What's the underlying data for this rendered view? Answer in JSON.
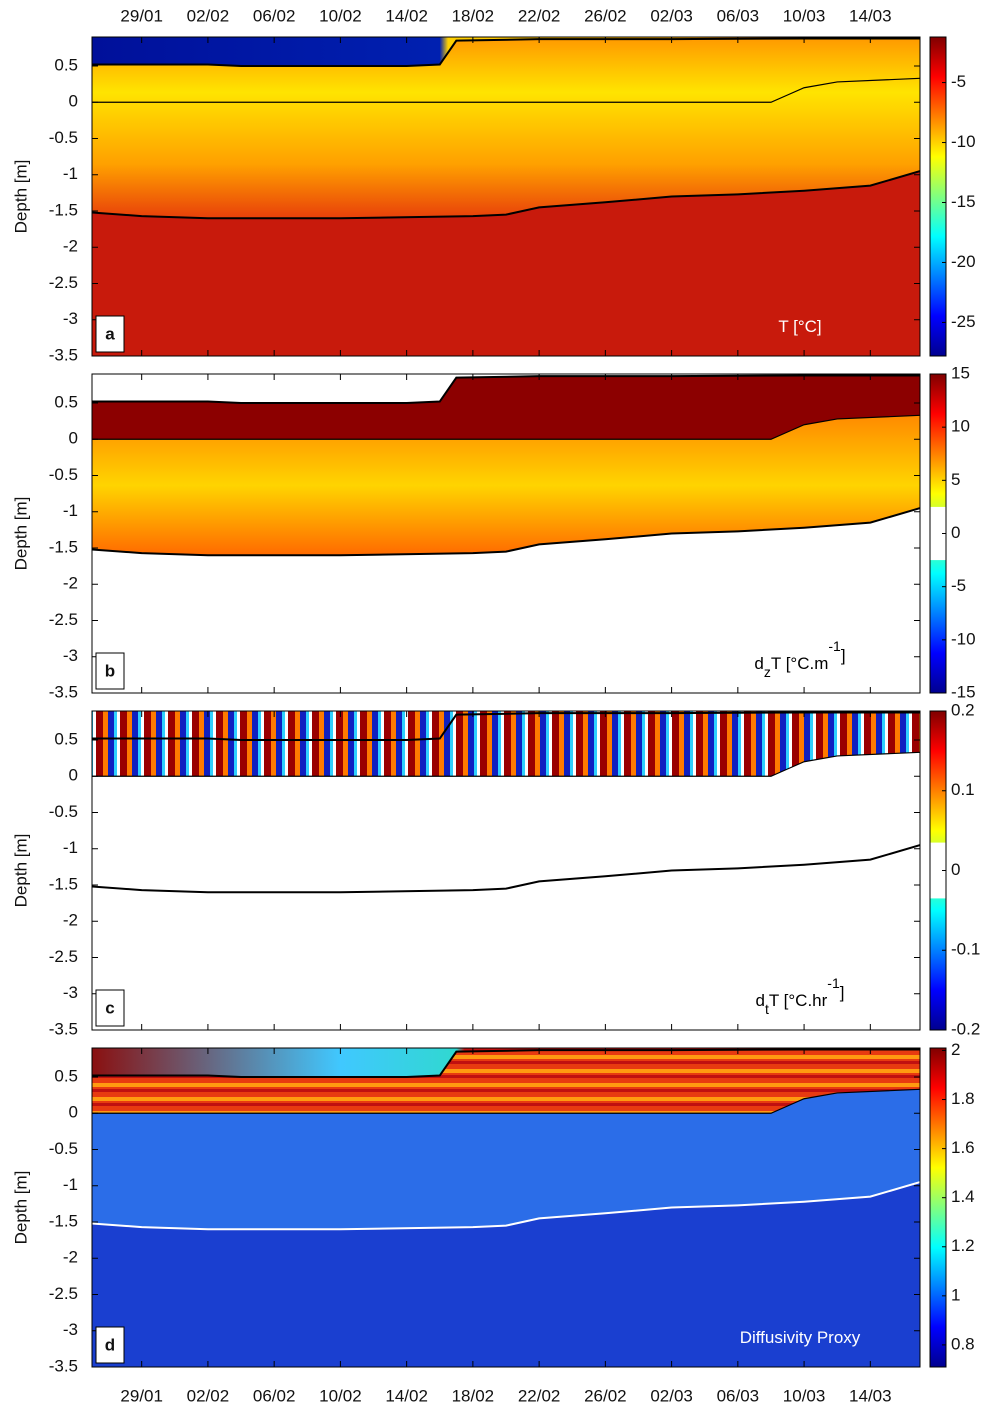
{
  "chart_data": [
    {
      "type": "heatmap",
      "panel_label": "a",
      "y_label": "Depth [m]",
      "colorbar_label": [
        "T [°C]"
      ],
      "colorbar_label_style": [
        "normal"
      ],
      "xlim": [
        "26/01",
        "17/03"
      ],
      "xticks": [
        "29/01",
        "02/02",
        "06/02",
        "10/02",
        "14/02",
        "18/02",
        "22/02",
        "26/02",
        "02/03",
        "06/03",
        "10/03",
        "14/03"
      ],
      "xtick_labels": "top",
      "ylim": [
        -3.5,
        0.9
      ],
      "yticks": [
        0.5,
        0,
        -0.5,
        -1,
        -1.5,
        -2,
        -2.5,
        -3,
        -3.5
      ],
      "clim": [
        -27.8,
        -1.2
      ],
      "cticks": [
        -5,
        -10,
        -15,
        -20,
        -25
      ],
      "series": [
        {
          "color": "#000000",
          "x": [
            "26/01",
            "02/02",
            "04/02",
            "14/02",
            "16/02",
            "17/02",
            "22/02",
            "02/03",
            "10/03",
            "17/03"
          ],
          "values": [
            0.52,
            0.52,
            0.5,
            0.5,
            0.52,
            0.85,
            0.87,
            0.87,
            0.88,
            0.88
          ]
        },
        {
          "color": "#000000",
          "x": [
            "26/01",
            "08/03",
            "09/03",
            "10/03",
            "12/03",
            "17/03"
          ],
          "values": [
            0,
            0,
            0.1,
            0.2,
            0.28,
            0.33
          ]
        },
        {
          "color": "#000000",
          "x": [
            "26/01",
            "29/01",
            "02/02",
            "10/02",
            "18/02",
            "20/02",
            "22/02",
            "26/02",
            "02/03",
            "06/03",
            "10/03",
            "14/03",
            "17/03"
          ],
          "values": [
            -1.52,
            -1.57,
            -1.6,
            -1.6,
            -1.57,
            -1.55,
            -1.45,
            -1.38,
            -1.3,
            -1.27,
            -1.22,
            -1.15,
            -0.95
          ]
        }
      ]
    },
    {
      "type": "heatmap",
      "panel_label": "b",
      "y_label": "Depth [m]",
      "colorbar_label": [
        "d",
        "z",
        "T [°C.m",
        "-1",
        "]"
      ],
      "colorbar_label_style": [
        "normal",
        "sub",
        "normal",
        "sup",
        "normal"
      ],
      "xlim": [
        "26/01",
        "17/03"
      ],
      "xticks": [
        "29/01",
        "02/02",
        "06/02",
        "10/02",
        "14/02",
        "18/02",
        "22/02",
        "26/02",
        "02/03",
        "06/03",
        "10/03",
        "14/03"
      ],
      "xtick_labels": "none",
      "ylim": [
        -3.5,
        0.9
      ],
      "yticks": [
        0.5,
        0,
        -0.5,
        -1,
        -1.5,
        -2,
        -2.5,
        -3,
        -3.5
      ],
      "clim": [
        -15,
        15
      ],
      "cticks": [
        15,
        10,
        5,
        0,
        -5,
        -10,
        -15
      ],
      "masked_range": [
        -2.5,
        2.5
      ],
      "series": [
        {
          "color": "#000000",
          "x": [
            "26/01",
            "02/02",
            "04/02",
            "14/02",
            "16/02",
            "17/02",
            "22/02",
            "02/03",
            "10/03",
            "17/03"
          ],
          "values": [
            0.52,
            0.52,
            0.5,
            0.5,
            0.52,
            0.85,
            0.87,
            0.87,
            0.88,
            0.88
          ]
        },
        {
          "color": "#000000",
          "x": [
            "26/01",
            "08/03",
            "09/03",
            "10/03",
            "12/03",
            "17/03"
          ],
          "values": [
            0,
            0,
            0.1,
            0.2,
            0.28,
            0.33
          ]
        },
        {
          "color": "#000000",
          "x": [
            "26/01",
            "29/01",
            "02/02",
            "10/02",
            "18/02",
            "20/02",
            "22/02",
            "26/02",
            "02/03",
            "06/03",
            "10/03",
            "14/03",
            "17/03"
          ],
          "values": [
            -1.52,
            -1.57,
            -1.6,
            -1.6,
            -1.57,
            -1.55,
            -1.45,
            -1.38,
            -1.3,
            -1.27,
            -1.22,
            -1.15,
            -0.95
          ]
        }
      ]
    },
    {
      "type": "heatmap",
      "panel_label": "c",
      "y_label": "Depth [m]",
      "colorbar_label": [
        "d",
        "t",
        "T [°C.hr",
        "-1",
        "]"
      ],
      "colorbar_label_style": [
        "normal",
        "sub",
        "normal",
        "sup",
        "normal"
      ],
      "xlim": [
        "26/01",
        "17/03"
      ],
      "xticks": [
        "29/01",
        "02/02",
        "06/02",
        "10/02",
        "14/02",
        "18/02",
        "22/02",
        "26/02",
        "02/03",
        "06/03",
        "10/03",
        "14/03"
      ],
      "xtick_labels": "none",
      "ylim": [
        -3.5,
        0.9
      ],
      "yticks": [
        0.5,
        0,
        -0.5,
        -1,
        -1.5,
        -2,
        -2.5,
        -3,
        -3.5
      ],
      "clim": [
        -0.2,
        0.2
      ],
      "cticks": [
        0.2,
        0.1,
        0,
        -0.1,
        -0.2
      ],
      "masked_range": [
        -0.035,
        0.035
      ],
      "series": [
        {
          "color": "#000000",
          "x": [
            "26/01",
            "02/02",
            "04/02",
            "14/02",
            "16/02",
            "17/02",
            "22/02",
            "02/03",
            "10/03",
            "17/03"
          ],
          "values": [
            0.52,
            0.52,
            0.5,
            0.5,
            0.52,
            0.85,
            0.87,
            0.87,
            0.88,
            0.88
          ]
        },
        {
          "color": "#000000",
          "x": [
            "26/01",
            "08/03",
            "09/03",
            "10/03",
            "12/03",
            "17/03"
          ],
          "values": [
            0,
            0,
            0.1,
            0.2,
            0.28,
            0.33
          ]
        },
        {
          "color": "#000000",
          "x": [
            "26/01",
            "29/01",
            "02/02",
            "10/02",
            "18/02",
            "20/02",
            "22/02",
            "26/02",
            "02/03",
            "06/03",
            "10/03",
            "14/03",
            "17/03"
          ],
          "values": [
            -1.52,
            -1.57,
            -1.6,
            -1.6,
            -1.57,
            -1.55,
            -1.45,
            -1.38,
            -1.3,
            -1.27,
            -1.22,
            -1.15,
            -0.95
          ]
        }
      ]
    },
    {
      "type": "heatmap",
      "panel_label": "d",
      "y_label": "Depth [m]",
      "colorbar_label": [
        "Diffusivity Proxy"
      ],
      "colorbar_label_style": [
        "normal"
      ],
      "xlim": [
        "26/01",
        "17/03"
      ],
      "xticks": [
        "29/01",
        "02/02",
        "06/02",
        "10/02",
        "14/02",
        "18/02",
        "22/02",
        "26/02",
        "02/03",
        "06/03",
        "10/03",
        "14/03"
      ],
      "xtick_labels": "bottom",
      "ylim": [
        -3.5,
        0.9
      ],
      "yticks": [
        0.5,
        0,
        -0.5,
        -1,
        -1.5,
        -2,
        -2.5,
        -3,
        -3.5
      ],
      "clim": [
        0.71,
        2.01
      ],
      "cticks": [
        2,
        1.8,
        1.6,
        1.4,
        1.2,
        1,
        0.8
      ],
      "series": [
        {
          "color": "#000000",
          "x": [
            "26/01",
            "02/02",
            "04/02",
            "14/02",
            "16/02",
            "17/02",
            "22/02",
            "02/03",
            "10/03",
            "17/03"
          ],
          "values": [
            0.52,
            0.52,
            0.5,
            0.5,
            0.52,
            0.85,
            0.87,
            0.87,
            0.88,
            0.88
          ]
        },
        {
          "color": "#000000",
          "x": [
            "26/01",
            "08/03",
            "09/03",
            "10/03",
            "12/03",
            "17/03"
          ],
          "values": [
            0,
            0,
            0.1,
            0.2,
            0.28,
            0.33
          ]
        },
        {
          "color": "#ffffff",
          "x": [
            "26/01",
            "29/01",
            "02/02",
            "10/02",
            "18/02",
            "20/02",
            "22/02",
            "26/02",
            "02/03",
            "06/03",
            "10/03",
            "14/03",
            "17/03"
          ],
          "values": [
            -1.52,
            -1.57,
            -1.6,
            -1.6,
            -1.57,
            -1.55,
            -1.45,
            -1.38,
            -1.3,
            -1.27,
            -1.22,
            -1.15,
            -0.95
          ]
        }
      ]
    }
  ]
}
